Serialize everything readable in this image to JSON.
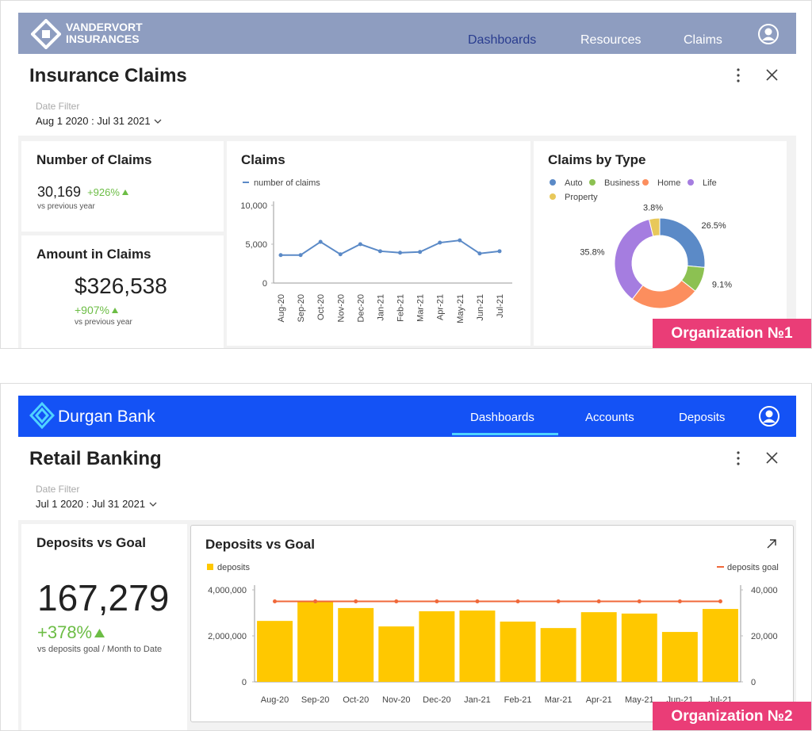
{
  "panels": [
    {
      "brand": [
        "VANDERVORT",
        "INSURANCES"
      ],
      "nav": [
        "Dashboards",
        "Resources",
        "Claims"
      ],
      "title": "Insurance Claims",
      "filter_label": "Date Filter",
      "filter_value": "Aug 1 2020 : Jul 31 2021",
      "badge": "Organization №1",
      "kpis": [
        {
          "title": "Number of Claims",
          "value": "30,169",
          "change": "+926%",
          "note": "vs previous year"
        },
        {
          "title": "Amount in Claims",
          "value": "$326,538",
          "change": "+907%",
          "note": "vs previous year"
        }
      ],
      "charts": [
        {
          "type": "line",
          "title": "Claims",
          "categories": [
            "Aug-20",
            "Sep-20",
            "Oct-20",
            "Nov-20",
            "Dec-20",
            "Jan-21",
            "Feb-21",
            "Mar-21",
            "Apr-21",
            "May-21",
            "Jun-21",
            "Jul-21"
          ],
          "series": [
            {
              "name": "number of claims",
              "color": "#5b8ac7",
              "values": [
                3600,
                3600,
                5300,
                3700,
                5000,
                4100,
                3900,
                4000,
                5200,
                5500,
                3800,
                4100
              ]
            }
          ],
          "ylim": [
            0,
            10000
          ],
          "yticks": [
            0,
            {
              "value": 5000,
              "label": "5,000"
            },
            {
              "value": 10000,
              "label": "10,000"
            }
          ]
        },
        {
          "type": "pie",
          "title": "Claims by Type",
          "donut": true,
          "categories": [
            "Auto",
            "Business",
            "Home",
            "Life",
            "Property"
          ],
          "values": [
            26.5,
            9.1,
            24.8,
            35.8,
            3.8
          ],
          "value_labels": [
            "26.5%",
            "9.1%",
            null,
            "35.8%",
            "3.8%"
          ],
          "colors": [
            "#5b8ac7",
            "#8cc152",
            "#fc8e5e",
            "#a57de0",
            "#e8c85a"
          ]
        }
      ]
    },
    {
      "brand": [
        "Durgan Bank"
      ],
      "nav": [
        "Dashboards",
        "Accounts",
        "Deposits"
      ],
      "title": "Retail Banking",
      "filter_label": "Date Filter",
      "filter_value": "Jul 1 2020 : Jul 31 2021",
      "badge": "Organization №2",
      "kpis": [
        {
          "title": "Deposits vs Goal",
          "value": "167,279",
          "change": "+378%",
          "note": "vs deposits goal / Month to Date"
        }
      ],
      "charts": [
        {
          "type": "bar",
          "title": "Deposits vs Goal",
          "categories": [
            "Aug-20",
            "Sep-20",
            "Oct-20",
            "Nov-20",
            "Dec-20",
            "Jan-21",
            "Feb-21",
            "Mar-21",
            "Apr-21",
            "May-21",
            "Jun-21",
            "Jul-21"
          ],
          "series": [
            {
              "name": "deposits",
              "color": "#ffc800",
              "values": [
                2650000,
                3520000,
                3210000,
                2410000,
                3070000,
                3100000,
                2620000,
                2340000,
                3030000,
                2970000,
                2170000,
                3170000
              ]
            },
            {
              "name": "deposits goal",
              "color": "#f0683a",
              "type": "line",
              "axis": "y2",
              "values": [
                35000,
                35000,
                35000,
                35000,
                35000,
                35000,
                35000,
                35000,
                35000,
                35000,
                35000,
                35000
              ]
            }
          ],
          "ylim": [
            0,
            4000000
          ],
          "yticks": [
            0,
            {
              "value": 2000000,
              "label": "2,000,000"
            },
            {
              "value": 4000000,
              "label": "4,000,000"
            }
          ],
          "y2lim": [
            0,
            40000
          ],
          "y2ticks": [
            0,
            {
              "value": 20000,
              "label": "20,000"
            },
            {
              "value": 40000,
              "label": "40,000"
            }
          ]
        }
      ]
    }
  ]
}
